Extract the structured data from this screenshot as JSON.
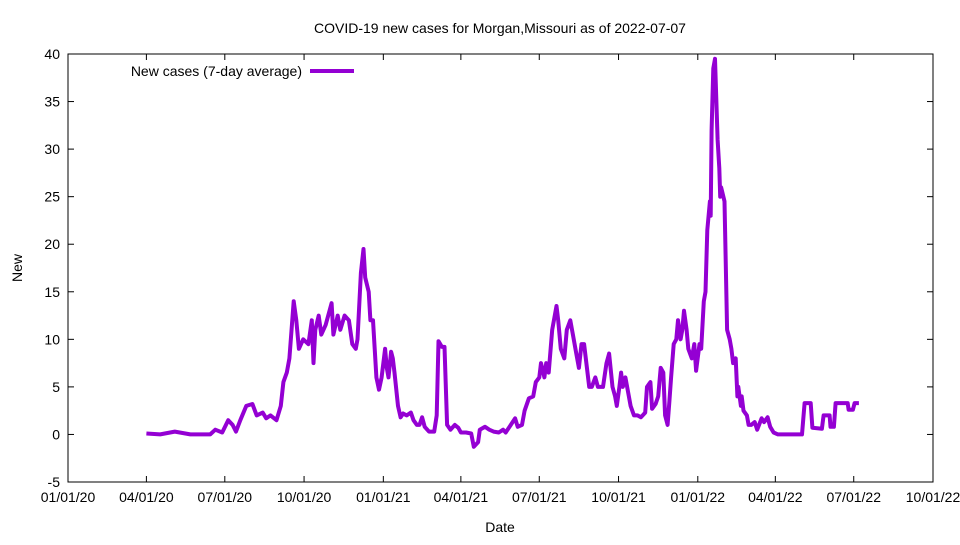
{
  "chart_data": {
    "type": "line",
    "title": "COVID-19 new cases for Morgan,Missouri as of 2022-07-07",
    "xlabel": "Date",
    "ylabel": "New",
    "x_origin": "2020-01-01",
    "x_units": "days since 2020-01-01",
    "xlim": [
      0,
      1004
    ],
    "ylim": [
      -5,
      40
    ],
    "yticks": [
      -5,
      0,
      5,
      10,
      15,
      20,
      25,
      30,
      35,
      40
    ],
    "xticks": [
      {
        "day": 0,
        "label": "01/01/20"
      },
      {
        "day": 91,
        "label": "04/01/20"
      },
      {
        "day": 182,
        "label": "07/01/20"
      },
      {
        "day": 274,
        "label": "10/01/20"
      },
      {
        "day": 366,
        "label": "01/01/21"
      },
      {
        "day": 456,
        "label": "04/01/21"
      },
      {
        "day": 547,
        "label": "07/01/21"
      },
      {
        "day": 639,
        "label": "10/01/21"
      },
      {
        "day": 731,
        "label": "01/01/22"
      },
      {
        "day": 821,
        "label": "04/01/22"
      },
      {
        "day": 912,
        "label": "07/01/22"
      },
      {
        "day": 1004,
        "label": "10/01/22"
      }
    ],
    "grid": false,
    "legend_position": "top-left",
    "colors": {
      "series": "#9400d3"
    },
    "series": [
      {
        "name": "New cases (7-day average)",
        "x": [
          91,
          107,
          124,
          142,
          154,
          165,
          171,
          179,
          186,
          191,
          195,
          200,
          207,
          214,
          219,
          226,
          230,
          235,
          242,
          247,
          250,
          254,
          257,
          262,
          265,
          268,
          273,
          279,
          283,
          285,
          287,
          291,
          294,
          299,
          306,
          308,
          313,
          316,
          321,
          326,
          330,
          334,
          336,
          340,
          343,
          345,
          349,
          351,
          354,
          356,
          358,
          361,
          364,
          368,
          370,
          372,
          375,
          377,
          379,
          383,
          386,
          389,
          393,
          398,
          401,
          405,
          408,
          411,
          414,
          419,
          425,
          428,
          430,
          434,
          437,
          440,
          444,
          449,
          453,
          456,
          462,
          468,
          471,
          476,
          478,
          484,
          489,
          494,
          500,
          505,
          508,
          514,
          519,
          522,
          527,
          530,
          535,
          540,
          543,
          547,
          549,
          553,
          555,
          558,
          562,
          567,
          569,
          572,
          576,
          579,
          583,
          586,
          590,
          593,
          596,
          599,
          601,
          605,
          608,
          612,
          615,
          618,
          621,
          625,
          628,
          632,
          635,
          637,
          640,
          642,
          644,
          647,
          650,
          653,
          657,
          661,
          665,
          670,
          672,
          676,
          678,
          682,
          685,
          688,
          691,
          693,
          696,
          698,
          700,
          703,
          706,
          708,
          711,
          713,
          715,
          718,
          720,
          724,
          727,
          729,
          733,
          735,
          738,
          740,
          742,
          745,
          746,
          747,
          749,
          751,
          754,
          756,
          757,
          758,
          762,
          765,
          768,
          770,
          772,
          775,
          777,
          778,
          781,
          782,
          784,
          788,
          790,
          793,
          797,
          800,
          805,
          808,
          812,
          815,
          819,
          824,
          852,
          855,
          862,
          864,
          875,
          877,
          884,
          885,
          889,
          891,
          905,
          906,
          911,
          913,
          918
        ],
        "y": [
          0.1,
          0,
          0.3,
          0,
          0,
          0,
          0.5,
          0.2,
          1.5,
          1,
          0.3,
          1.5,
          3,
          3.2,
          2,
          2.3,
          1.7,
          2,
          1.5,
          3,
          5.5,
          6.5,
          8,
          14,
          12,
          9,
          10,
          9.5,
          12,
          7.5,
          11,
          12.5,
          10.5,
          11.5,
          13.8,
          10.5,
          12.5,
          11,
          12.5,
          12,
          9.5,
          9,
          10,
          17,
          19.5,
          16.5,
          15,
          12,
          12,
          9,
          6,
          4.7,
          6,
          9,
          7,
          6,
          8.7,
          8,
          6.5,
          3,
          1.8,
          2.2,
          2,
          2.3,
          1.5,
          1,
          1,
          1.8,
          0.8,
          0.3,
          0.3,
          2,
          9.8,
          9.2,
          9.2,
          1,
          0.5,
          1,
          0.7,
          0.2,
          0.2,
          0.1,
          -1.3,
          -0.8,
          0.5,
          0.8,
          0.5,
          0.3,
          0.2,
          0.5,
          0.2,
          1,
          1.7,
          0.8,
          1,
          2.5,
          3.8,
          4,
          5.5,
          6,
          7.5,
          6,
          7.5,
          6.5,
          11,
          13.5,
          12,
          9,
          8,
          11,
          12,
          10.5,
          8.5,
          7,
          9.5,
          9.5,
          8,
          5,
          5,
          6,
          5,
          5,
          5,
          7.5,
          8.5,
          5,
          4,
          3,
          5,
          6.5,
          5,
          6,
          4.5,
          3,
          2,
          2,
          1.8,
          2.3,
          5,
          5.5,
          2.7,
          3.2,
          4,
          7,
          6.5,
          2,
          1,
          3.5,
          6,
          9.5,
          10,
          12,
          10,
          11,
          13,
          11,
          9,
          8,
          9.5,
          6.7,
          9.5,
          9,
          14,
          15,
          21.5,
          24.5,
          23,
          32,
          38.5,
          39.5,
          31,
          28,
          25,
          26,
          24.5,
          11,
          10,
          9,
          7.5,
          8,
          4,
          5,
          3,
          4,
          2.5,
          2,
          1,
          1,
          1.3,
          0.5,
          1.7,
          1.3,
          1.8,
          0.8,
          0.2,
          0,
          0,
          3.3,
          3.3,
          0.7,
          0.6,
          2,
          2,
          0.8,
          0.8,
          3.3,
          3.3,
          2.6,
          2.6,
          3.3,
          3.3
        ]
      }
    ]
  }
}
